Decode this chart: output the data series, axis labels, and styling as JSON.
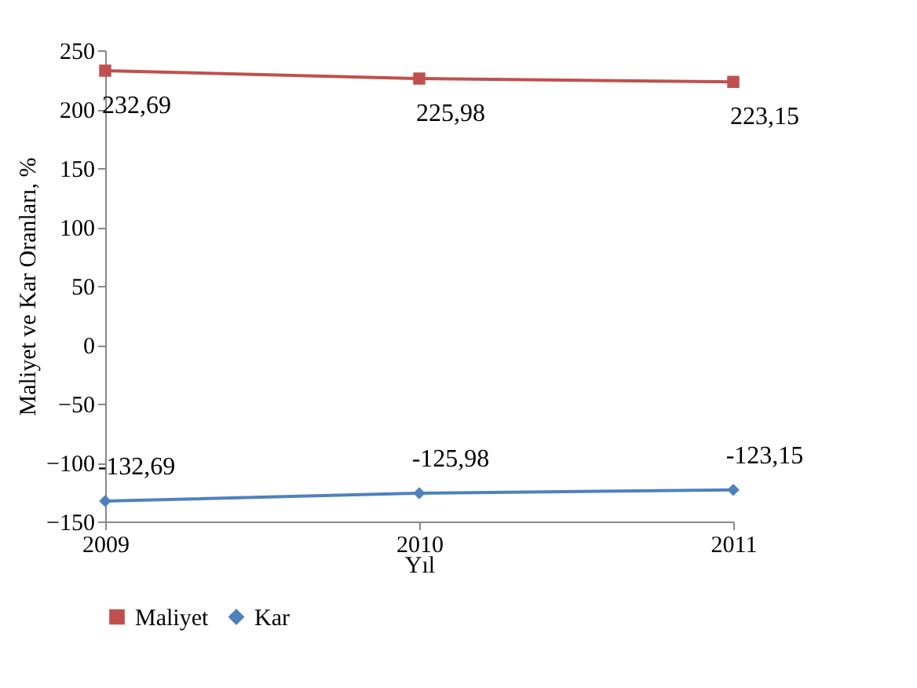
{
  "chart_data": {
    "type": "line",
    "xlabel": "Yıl",
    "ylabel": "Maliyet ve Kar Oranları, %",
    "categories": [
      "2009",
      "2010",
      "2011"
    ],
    "ylim": [
      -150,
      250
    ],
    "yticks": [
      -150,
      -100,
      -50,
      0,
      50,
      100,
      150,
      200,
      250
    ],
    "series": [
      {
        "name": "Maliyet",
        "color": "#c0504d",
        "marker": "square",
        "values": [
          232.69,
          225.98,
          223.15
        ],
        "value_labels": [
          "232,69",
          "225,98",
          "223,15"
        ]
      },
      {
        "name": "Kar",
        "color": "#4f81bd",
        "marker": "diamond",
        "values": [
          -132.69,
          -125.98,
          -123.15
        ],
        "value_labels": [
          "-132,69",
          "-125,98",
          "-123,15"
        ]
      }
    ],
    "grid": false,
    "legend": "bottom",
    "line_style": "solid"
  }
}
